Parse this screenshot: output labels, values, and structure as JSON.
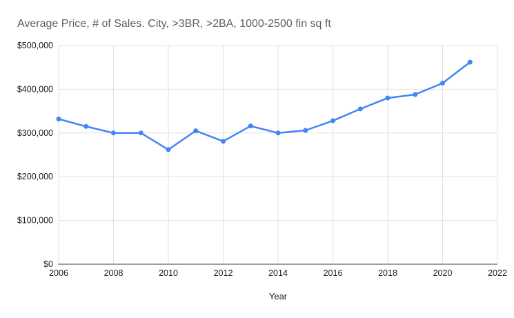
{
  "page": {
    "background_color": "#ffffff"
  },
  "chart_data": {
    "type": "line",
    "title": "Average Price, # of Sales. City, >3BR, >2BA, 1000-2500 fin sq ft",
    "xlabel": "Year",
    "ylabel": "",
    "legend_position": "none",
    "grid": true,
    "series_name": "Average Price",
    "x": [
      2006,
      2007,
      2008,
      2009,
      2010,
      2011,
      2012,
      2013,
      2014,
      2015,
      2016,
      2017,
      2018,
      2019,
      2020,
      2021
    ],
    "values": [
      332000,
      315000,
      300000,
      300000,
      262000,
      305000,
      281000,
      316000,
      300000,
      306000,
      328000,
      355000,
      380000,
      388000,
      414000,
      462000
    ],
    "xlim": [
      2006,
      2022
    ],
    "ylim": [
      0,
      500000
    ],
    "x_ticks": [
      2006,
      2008,
      2010,
      2012,
      2014,
      2016,
      2018,
      2020,
      2022
    ],
    "y_ticks": [
      {
        "value": 0,
        "label": "$0"
      },
      {
        "value": 100000,
        "label": "$100,000"
      },
      {
        "value": 200000,
        "label": "$200,000"
      },
      {
        "value": 300000,
        "label": "$300,000"
      },
      {
        "value": 400000,
        "label": "$400,000"
      },
      {
        "value": 500000,
        "label": "$500,000"
      }
    ],
    "colors": {
      "line": "#4285f4",
      "point": "#4285f4",
      "gridline": "#e0e0e0",
      "axis_line": "#424242",
      "tick_label": "#1a1a1a",
      "title": "#616161"
    }
  }
}
